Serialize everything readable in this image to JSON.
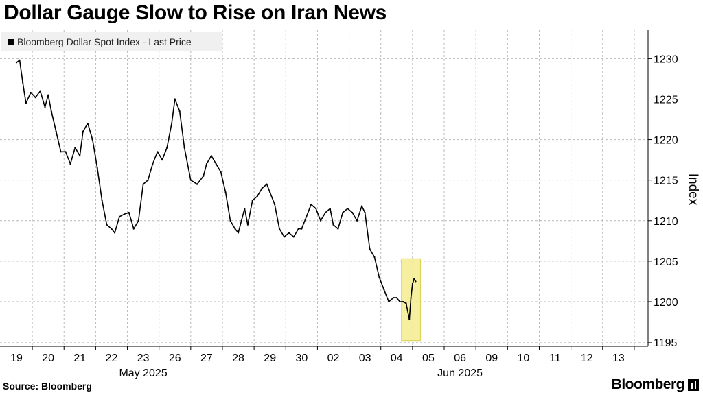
{
  "title": "Dollar Gauge Slow to Rise on Iran News",
  "legend": {
    "label": "Bloomberg Dollar Spot Index - Last Price"
  },
  "footer": {
    "source": "Source: Bloomberg",
    "brand": "Bloomberg"
  },
  "colors": {
    "series": "#000000",
    "highlight": "#f5ec8e",
    "highlight_border": "#d9cf4f",
    "grid": "#b8b8b8"
  },
  "chart_data": {
    "type": "line",
    "title": "Dollar Gauge Slow to Rise on Iran News",
    "ylabel": "Index",
    "xlabel": "",
    "ylim": [
      1194.5,
      1233.5
    ],
    "yticks": [
      1195,
      1200,
      1205,
      1210,
      1215,
      1220,
      1225,
      1230
    ],
    "grid": true,
    "legend_position": "top-left",
    "x_tick_labels": [
      "19",
      "20",
      "21",
      "22",
      "23",
      "26",
      "27",
      "28",
      "29",
      "30",
      "02",
      "03",
      "04",
      "05",
      "06",
      "09",
      "10",
      "11",
      "12",
      "13"
    ],
    "x_month_labels": [
      {
        "label": "May 2025",
        "at": "23"
      },
      {
        "label": "Jun 2025",
        "at": "06"
      }
    ],
    "highlight": {
      "from_day_index": 12.15,
      "to_day_index": 12.75,
      "y_range": [
        1195.2,
        1205.3
      ]
    },
    "series": [
      {
        "name": "Bloomberg Dollar Spot Index - Last Price",
        "x": [
          0,
          0.1,
          0.2,
          0.3,
          0.45,
          0.6,
          0.75,
          0.9,
          1.0,
          1.1,
          1.25,
          1.4,
          1.55,
          1.7,
          1.85,
          2.0,
          2.1,
          2.25,
          2.4,
          2.55,
          2.7,
          2.85,
          3.0,
          3.1,
          3.25,
          3.4,
          3.55,
          3.7,
          3.85,
          4.0,
          4.15,
          4.3,
          4.45,
          4.6,
          4.75,
          4.9,
          5.0,
          5.15,
          5.3,
          5.5,
          5.7,
          5.9,
          6.0,
          6.15,
          6.3,
          6.45,
          6.6,
          6.75,
          6.9,
          7.0,
          7.1,
          7.2,
          7.3,
          7.45,
          7.6,
          7.75,
          7.9,
          8.0,
          8.15,
          8.3,
          8.45,
          8.6,
          8.75,
          8.9,
          9.0,
          9.15,
          9.3,
          9.45,
          9.6,
          9.75,
          9.9,
          10.0,
          10.15,
          10.3,
          10.45,
          10.6,
          10.75,
          10.9,
          11.0,
          11.15,
          11.3,
          11.45,
          11.6,
          11.75,
          11.9,
          12.0,
          12.1,
          12.2,
          12.3,
          12.4,
          12.45,
          12.5,
          12.55,
          12.6
        ],
        "y": [
          1229.5,
          1229.8,
          1227,
          1224.5,
          1225.8,
          1225.2,
          1226,
          1224,
          1225.5,
          1223.5,
          1221,
          1218.5,
          1218.5,
          1217,
          1219,
          1218,
          1221,
          1222,
          1220,
          1216.5,
          1212.5,
          1209.5,
          1209,
          1208.5,
          1210.5,
          1210.8,
          1211,
          1209,
          1210,
          1214.5,
          1215,
          1217,
          1218.5,
          1217.5,
          1219,
          1222,
          1225,
          1223.5,
          1219,
          1215,
          1214.5,
          1215.5,
          1217,
          1218,
          1217,
          1216,
          1213.5,
          1210,
          1209,
          1208.5,
          1210,
          1211.5,
          1209.5,
          1212.5,
          1213,
          1214,
          1214.5,
          1213.5,
          1212,
          1209,
          1208,
          1208.5,
          1208,
          1209,
          1209,
          1210.5,
          1212,
          1211.5,
          1210,
          1211,
          1211.5,
          1209.5,
          1209,
          1211,
          1211.5,
          1211,
          1210,
          1211.8,
          1211,
          1206.5,
          1205.5,
          1203,
          1201.5,
          1200,
          1200.5,
          1200.5,
          1200,
          1200,
          1199.8,
          1197.8,
          1200.5,
          1202.2,
          1202.8,
          1202.5
        ]
      }
    ]
  }
}
